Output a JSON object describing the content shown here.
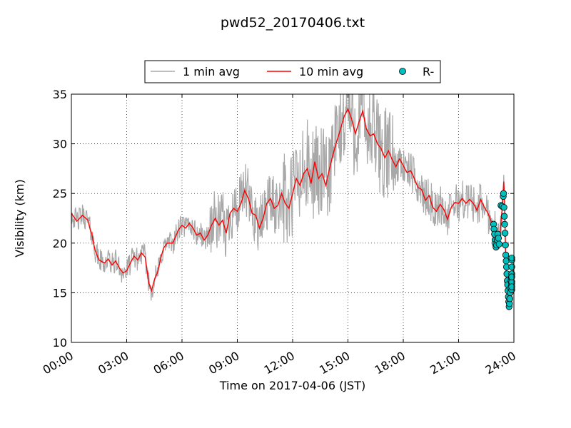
{
  "chart_data": {
    "type": "line",
    "title": "pwd52_20170406.txt",
    "xlabel": "Time on 2017-04-06 (JST)",
    "ylabel": "Visibility (km)",
    "x_unit": "hours",
    "xlim": [
      0,
      24
    ],
    "ylim": [
      10,
      35
    ],
    "x_tick_values": [
      0,
      3,
      6,
      9,
      12,
      15,
      18,
      21,
      24
    ],
    "x_tick_labels": [
      "00:00",
      "03:00",
      "06:00",
      "09:00",
      "12:00",
      "15:00",
      "18:00",
      "21:00",
      "24:00"
    ],
    "y_ticks": [
      10,
      15,
      20,
      25,
      30,
      35
    ],
    "grid": true,
    "legend_position": "top-center",
    "legend": {
      "one_min": "1 min avg",
      "ten_min": "10 min avg",
      "rain": "R-"
    },
    "colors": {
      "one_min": "#a8a8a8",
      "ten_min": "#ff0000",
      "rain_fill": "#00bfbf",
      "rain_edge": "#000000"
    },
    "series": [
      {
        "name": "10 min avg",
        "points": [
          [
            0.0,
            23.0
          ],
          [
            0.3,
            22.2
          ],
          [
            0.6,
            22.8
          ],
          [
            0.9,
            22.3
          ],
          [
            1.0,
            21.5
          ],
          [
            1.1,
            21.0
          ],
          [
            1.2,
            20.0
          ],
          [
            1.3,
            19.2
          ],
          [
            1.5,
            18.3
          ],
          [
            1.8,
            18.0
          ],
          [
            2.0,
            18.4
          ],
          [
            2.2,
            17.8
          ],
          [
            2.4,
            18.2
          ],
          [
            2.6,
            17.5
          ],
          [
            2.8,
            17.0
          ],
          [
            3.0,
            17.2
          ],
          [
            3.2,
            18.0
          ],
          [
            3.4,
            18.7
          ],
          [
            3.6,
            18.3
          ],
          [
            3.8,
            19.0
          ],
          [
            4.0,
            18.6
          ],
          [
            4.2,
            16.0
          ],
          [
            4.35,
            15.2
          ],
          [
            4.5,
            16.3
          ],
          [
            4.7,
            17.2
          ],
          [
            4.85,
            18.5
          ],
          [
            5.0,
            19.5
          ],
          [
            5.2,
            20.0
          ],
          [
            5.5,
            20.0
          ],
          [
            5.8,
            21.3
          ],
          [
            6.0,
            21.8
          ],
          [
            6.2,
            21.5
          ],
          [
            6.4,
            22.0
          ],
          [
            6.6,
            21.5
          ],
          [
            6.8,
            20.8
          ],
          [
            7.0,
            21.0
          ],
          [
            7.2,
            20.3
          ],
          [
            7.4,
            20.8
          ],
          [
            7.6,
            21.8
          ],
          [
            7.8,
            22.5
          ],
          [
            8.0,
            21.8
          ],
          [
            8.2,
            22.3
          ],
          [
            8.4,
            21.0
          ],
          [
            8.6,
            23.0
          ],
          [
            8.8,
            23.5
          ],
          [
            9.0,
            23.2
          ],
          [
            9.2,
            24.0
          ],
          [
            9.4,
            25.3
          ],
          [
            9.6,
            24.5
          ],
          [
            9.8,
            23.0
          ],
          [
            10.0,
            22.8
          ],
          [
            10.2,
            21.5
          ],
          [
            10.4,
            22.5
          ],
          [
            10.6,
            24.0
          ],
          [
            10.8,
            24.5
          ],
          [
            11.0,
            23.5
          ],
          [
            11.2,
            23.8
          ],
          [
            11.4,
            25.0
          ],
          [
            11.6,
            24.0
          ],
          [
            11.8,
            23.5
          ],
          [
            12.0,
            25.0
          ],
          [
            12.2,
            26.5
          ],
          [
            12.4,
            25.8
          ],
          [
            12.6,
            27.0
          ],
          [
            12.8,
            27.5
          ],
          [
            13.0,
            26.0
          ],
          [
            13.2,
            28.2
          ],
          [
            13.4,
            26.5
          ],
          [
            13.6,
            27.0
          ],
          [
            13.8,
            25.8
          ],
          [
            14.0,
            27.5
          ],
          [
            14.2,
            29.0
          ],
          [
            14.4,
            30.3
          ],
          [
            14.6,
            31.5
          ],
          [
            14.8,
            32.8
          ],
          [
            15.0,
            33.5
          ],
          [
            15.2,
            32.5
          ],
          [
            15.4,
            31.0
          ],
          [
            15.6,
            32.2
          ],
          [
            15.8,
            33.3
          ],
          [
            16.0,
            31.5
          ],
          [
            16.2,
            30.8
          ],
          [
            16.4,
            31.0
          ],
          [
            16.6,
            30.0
          ],
          [
            16.8,
            29.5
          ],
          [
            17.0,
            28.6
          ],
          [
            17.2,
            29.3
          ],
          [
            17.4,
            28.4
          ],
          [
            17.6,
            27.7
          ],
          [
            17.8,
            28.5
          ],
          [
            18.0,
            27.8
          ],
          [
            18.2,
            27.1
          ],
          [
            18.4,
            27.3
          ],
          [
            18.6,
            26.5
          ],
          [
            18.8,
            25.6
          ],
          [
            19.0,
            25.4
          ],
          [
            19.2,
            24.3
          ],
          [
            19.4,
            24.8
          ],
          [
            19.6,
            23.6
          ],
          [
            19.8,
            23.2
          ],
          [
            20.0,
            23.9
          ],
          [
            20.2,
            23.4
          ],
          [
            20.4,
            22.4
          ],
          [
            20.6,
            23.6
          ],
          [
            20.8,
            24.1
          ],
          [
            21.0,
            24.0
          ],
          [
            21.2,
            24.5
          ],
          [
            21.4,
            24.0
          ],
          [
            21.6,
            24.4
          ],
          [
            21.8,
            24.0
          ],
          [
            22.0,
            23.3
          ],
          [
            22.2,
            24.4
          ],
          [
            22.4,
            23.6
          ],
          [
            22.6,
            23.0
          ],
          [
            22.8,
            22.0
          ],
          [
            23.0,
            21.4
          ],
          [
            23.1,
            20.5
          ],
          [
            23.25,
            21.0
          ],
          [
            23.35,
            23.2
          ],
          [
            23.45,
            26.2
          ],
          [
            23.5,
            24.0
          ],
          [
            23.55,
            19.0
          ],
          [
            23.6,
            16.0
          ],
          [
            23.65,
            14.5
          ],
          [
            23.7,
            14.0
          ],
          [
            23.75,
            14.6
          ],
          [
            23.8,
            15.6
          ],
          [
            23.85,
            16.5
          ],
          [
            23.9,
            15.8
          ],
          [
            23.95,
            16.8
          ],
          [
            24.0,
            18.0
          ]
        ]
      },
      {
        "name": "R-",
        "marker": "circle",
        "points": [
          [
            22.9,
            21.9
          ],
          [
            22.92,
            21.4
          ],
          [
            22.95,
            20.9
          ],
          [
            22.98,
            20.3
          ],
          [
            23.0,
            19.9
          ],
          [
            23.03,
            19.6
          ],
          [
            23.06,
            19.8
          ],
          [
            23.1,
            20.3
          ],
          [
            23.13,
            20.9
          ],
          [
            23.16,
            20.5
          ],
          [
            23.2,
            19.9
          ],
          [
            23.3,
            23.8
          ],
          [
            23.36,
            23.7
          ],
          [
            23.42,
            24.7
          ],
          [
            23.44,
            25.0
          ],
          [
            23.46,
            23.6
          ],
          [
            23.48,
            22.7
          ],
          [
            23.5,
            21.9
          ],
          [
            23.52,
            21.0
          ],
          [
            23.54,
            19.8
          ],
          [
            23.56,
            18.8
          ],
          [
            23.58,
            18.2
          ],
          [
            23.6,
            17.6
          ],
          [
            23.62,
            16.9
          ],
          [
            23.64,
            16.2
          ],
          [
            23.66,
            15.8
          ],
          [
            23.68,
            15.2
          ],
          [
            23.7,
            14.6
          ],
          [
            23.72,
            14.1
          ],
          [
            23.74,
            13.6
          ],
          [
            23.76,
            13.9
          ],
          [
            23.78,
            14.4
          ],
          [
            23.8,
            15.0
          ],
          [
            23.82,
            15.5
          ],
          [
            23.84,
            16.2
          ],
          [
            23.86,
            16.5
          ],
          [
            23.88,
            15.9
          ],
          [
            23.9,
            15.3
          ],
          [
            23.92,
            16.1
          ],
          [
            23.94,
            16.9
          ],
          [
            23.96,
            17.6
          ],
          [
            23.98,
            18.3
          ],
          [
            23.99,
            15.6
          ],
          [
            24.0,
            16.6
          ],
          [
            24.0,
            18.5
          ]
        ]
      }
    ]
  }
}
